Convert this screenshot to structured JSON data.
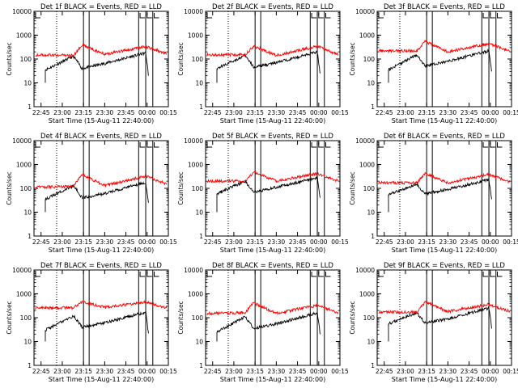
{
  "chart_data": [
    {
      "type": "line",
      "title": "Det 1f BLACK = Events, RED = LLD",
      "xlabel": "Start Time (15-Aug-11 22:40:00)",
      "ylabel": "Counts/sec",
      "y_scale": "log",
      "ylim": [
        1,
        10000
      ],
      "xticks": [
        "22:45",
        "23:00",
        "23:15",
        "23:30",
        "23:45",
        "00:00",
        "00:15"
      ],
      "yticks": [
        "1",
        "10",
        "100",
        "1000",
        "10000"
      ],
      "series": [
        {
          "name": "Events",
          "color": "#000000",
          "start": "22:48",
          "end": "00:01",
          "level": [
            35,
            130,
            40,
            65,
            180,
            20
          ]
        },
        {
          "name": "LLD",
          "color": "#ff0000",
          "level": [
            150,
            140,
            380,
            160,
            330,
            170
          ]
        }
      ]
    },
    {
      "type": "line",
      "title": "Det 2f BLACK = Events, RED = LLD",
      "xlabel": "Start Time (15-Aug-11 22:40:00)",
      "ylabel": "Counts/sec",
      "y_scale": "log",
      "ylim": [
        1,
        10000
      ],
      "xticks": [
        "22:45",
        "23:00",
        "23:15",
        "23:30",
        "23:45",
        "00:00",
        "00:15"
      ],
      "yticks": [
        "1",
        "10",
        "100",
        "1000",
        "10000"
      ],
      "series": [
        {
          "name": "Events",
          "color": "#000000",
          "start": "22:48",
          "end": "00:01",
          "level": [
            40,
            140,
            45,
            70,
            200,
            25
          ]
        },
        {
          "name": "LLD",
          "color": "#ff0000",
          "level": [
            150,
            150,
            350,
            140,
            350,
            150
          ]
        }
      ]
    },
    {
      "type": "line",
      "title": "Det 3f BLACK = Events, RED = LLD",
      "xlabel": "Start Time (15-Aug-11 22:40:00)",
      "ylabel": "Counts/sec",
      "y_scale": "log",
      "ylim": [
        1,
        10000
      ],
      "xticks": [
        "22:45",
        "23:00",
        "23:15",
        "23:30",
        "23:45",
        "00:00",
        "00:15"
      ],
      "yticks": [
        "1",
        "10",
        "100",
        "1000",
        "10000"
      ],
      "series": [
        {
          "name": "Events",
          "color": "#000000",
          "start": "22:48",
          "end": "00:01",
          "level": [
            35,
            150,
            50,
            80,
            220,
            30
          ]
        },
        {
          "name": "LLD",
          "color": "#ff0000",
          "level": [
            220,
            220,
            550,
            200,
            450,
            210
          ]
        }
      ]
    },
    {
      "type": "line",
      "title": "Det 4f BLACK = Events, RED = LLD",
      "xlabel": "Start Time (15-Aug-11 22:40:00)",
      "ylabel": "Counts/sec",
      "y_scale": "log",
      "ylim": [
        1,
        10000
      ],
      "xticks": [
        "22:45",
        "23:00",
        "23:15",
        "23:30",
        "23:45",
        "00:00",
        "00:15"
      ],
      "yticks": [
        "1",
        "10",
        "100",
        "1000",
        "10000"
      ],
      "series": [
        {
          "name": "Events",
          "color": "#000000",
          "start": "22:48",
          "end": "00:01",
          "level": [
            35,
            130,
            40,
            60,
            180,
            25
          ]
        },
        {
          "name": "LLD",
          "color": "#ff0000",
          "level": [
            110,
            120,
            380,
            130,
            330,
            150
          ]
        }
      ]
    },
    {
      "type": "line",
      "title": "Det 5f BLACK = Events, RED = LLD",
      "xlabel": "Start Time (15-Aug-11 22:40:00)",
      "ylabel": "Counts/sec",
      "y_scale": "log",
      "ylim": [
        1,
        10000
      ],
      "xticks": [
        "22:45",
        "23:00",
        "23:15",
        "23:30",
        "23:45",
        "00:00",
        "00:15"
      ],
      "yticks": [
        "1",
        "10",
        "100",
        "1000",
        "10000"
      ],
      "series": [
        {
          "name": "Events",
          "color": "#000000",
          "start": "22:48",
          "end": "00:01",
          "level": [
            60,
            200,
            70,
            110,
            280,
            40
          ]
        },
        {
          "name": "LLD",
          "color": "#ff0000",
          "level": [
            200,
            200,
            480,
            200,
            420,
            200
          ]
        }
      ]
    },
    {
      "type": "line",
      "title": "Det 6f BLACK = Events, RED = LLD",
      "xlabel": "Start Time (15-Aug-11 22:40:00)",
      "ylabel": "Counts/sec",
      "y_scale": "log",
      "ylim": [
        1,
        10000
      ],
      "xticks": [
        "22:45",
        "23:00",
        "23:15",
        "23:30",
        "23:45",
        "00:00",
        "00:15"
      ],
      "yticks": [
        "1",
        "10",
        "100",
        "1000",
        "10000"
      ],
      "series": [
        {
          "name": "Events",
          "color": "#000000",
          "start": "22:48",
          "end": "00:01",
          "level": [
            55,
            150,
            60,
            90,
            230,
            35
          ]
        },
        {
          "name": "LLD",
          "color": "#ff0000",
          "level": [
            170,
            170,
            420,
            170,
            380,
            180
          ]
        }
      ]
    },
    {
      "type": "line",
      "title": "Det 7f BLACK = Events, RED = LLD",
      "xlabel": "Start Time (15-Aug-11 22:40:00)",
      "ylabel": "Counts/sec",
      "y_scale": "log",
      "ylim": [
        1,
        10000
      ],
      "xticks": [
        "22:45",
        "23:00",
        "23:15",
        "23:30",
        "23:45",
        "00:00",
        "00:15"
      ],
      "yticks": [
        "1",
        "10",
        "100",
        "1000",
        "10000"
      ],
      "series": [
        {
          "name": "Events",
          "color": "#000000",
          "start": "22:48",
          "end": "00:01",
          "level": [
            30,
            120,
            40,
            60,
            170,
            22
          ]
        },
        {
          "name": "LLD",
          "color": "#ff0000",
          "level": [
            250,
            260,
            480,
            270,
            450,
            250
          ]
        }
      ]
    },
    {
      "type": "line",
      "title": "Det 8f BLACK = Events, RED = LLD",
      "xlabel": "Start Time (15-Aug-11 22:40:00)",
      "ylabel": "Counts/sec",
      "y_scale": "log",
      "ylim": [
        1,
        10000
      ],
      "xticks": [
        "22:45",
        "23:00",
        "23:15",
        "23:30",
        "23:45",
        "00:00",
        "00:15"
      ],
      "yticks": [
        "1",
        "10",
        "100",
        "1000",
        "10000"
      ],
      "series": [
        {
          "name": "Events",
          "color": "#000000",
          "start": "22:48",
          "end": "00:01",
          "level": [
            25,
            110,
            35,
            55,
            160,
            20
          ]
        },
        {
          "name": "LLD",
          "color": "#ff0000",
          "level": [
            150,
            160,
            420,
            150,
            330,
            160
          ]
        }
      ]
    },
    {
      "type": "line",
      "title": "Det 9f BLACK = Events, RED = LLD",
      "xlabel": "Start Time (15-Aug-11 22:40:00)",
      "ylabel": "Counts/sec",
      "y_scale": "log",
      "ylim": [
        1,
        10000
      ],
      "xticks": [
        "22:45",
        "23:00",
        "23:15",
        "23:30",
        "23:45",
        "00:00",
        "00:15"
      ],
      "yticks": [
        "1",
        "10",
        "100",
        "1000",
        "10000"
      ],
      "series": [
        {
          "name": "Events",
          "color": "#000000",
          "start": "22:48",
          "end": "00:01",
          "level": [
            55,
            160,
            60,
            90,
            250,
            35
          ]
        },
        {
          "name": "LLD",
          "color": "#ff0000",
          "level": [
            170,
            170,
            450,
            180,
            360,
            180
          ]
        }
      ]
    }
  ]
}
